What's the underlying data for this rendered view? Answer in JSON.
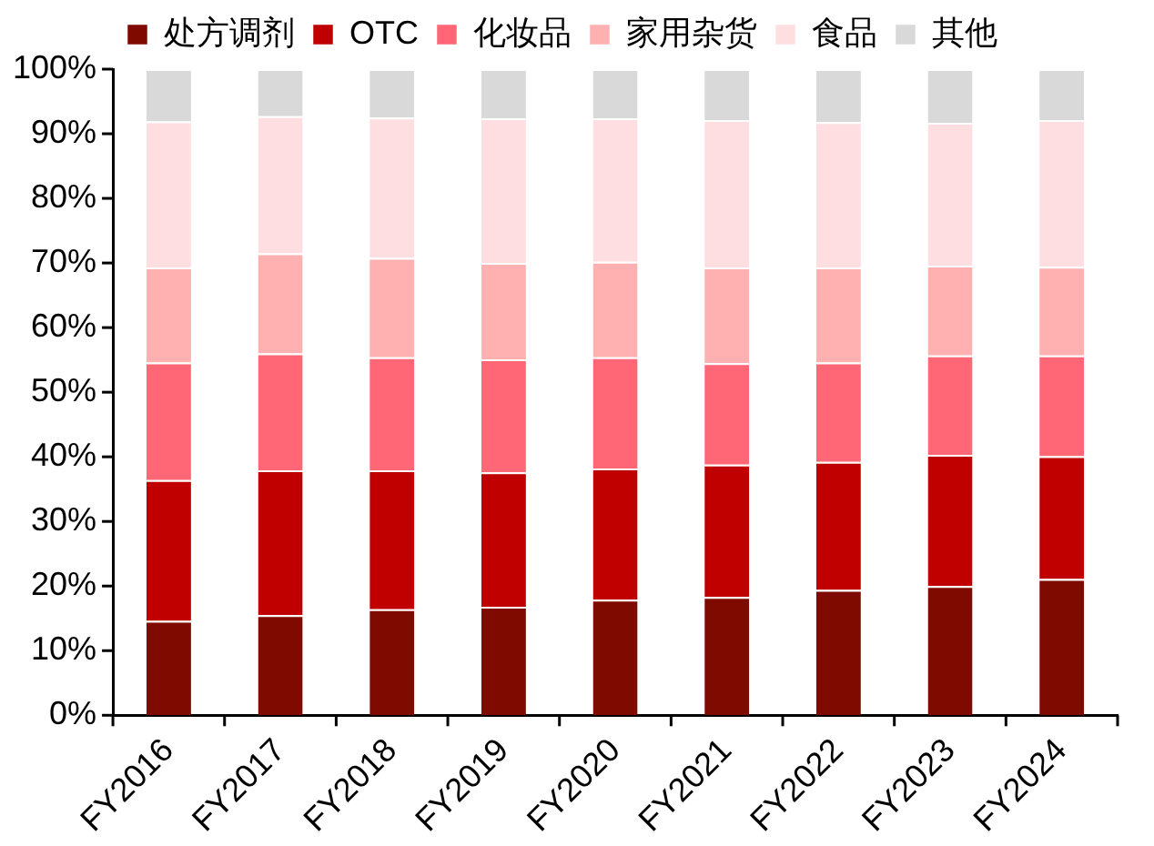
{
  "chart_data": {
    "type": "bar",
    "stacked": true,
    "legend": "top",
    "grid": false,
    "categories": [
      "FY2016",
      "FY2017",
      "FY2018",
      "FY2019",
      "FY2020",
      "FY2021",
      "FY2022",
      "FY2023",
      "FY2024"
    ],
    "ylim": [
      0,
      100
    ],
    "yticks": [
      {
        "value": 0,
        "label": "0%"
      },
      {
        "value": 10,
        "label": "10%"
      },
      {
        "value": 20,
        "label": "20%"
      },
      {
        "value": 30,
        "label": "30%"
      },
      {
        "value": 40,
        "label": "40%"
      },
      {
        "value": 50,
        "label": "50%"
      },
      {
        "value": 60,
        "label": "60%"
      },
      {
        "value": 70,
        "label": "70%"
      },
      {
        "value": 80,
        "label": "80%"
      },
      {
        "value": 90,
        "label": "90%"
      },
      {
        "value": 100,
        "label": "100%"
      }
    ],
    "series": [
      {
        "name": "处方调剂",
        "color": "#7f0a00",
        "values": [
          14.6,
          15.5,
          16.4,
          16.8,
          17.9,
          18.3,
          19.4,
          20.0,
          21.1
        ]
      },
      {
        "name": "OTC",
        "color": "#c00000",
        "values": [
          21.8,
          22.4,
          21.5,
          20.8,
          20.3,
          20.5,
          19.8,
          20.3,
          19.0
        ]
      },
      {
        "name": "化妆品",
        "color": "#ff6676",
        "values": [
          18.2,
          18.1,
          17.5,
          17.5,
          17.2,
          15.7,
          15.4,
          15.4,
          15.6
        ]
      },
      {
        "name": "家用杂货",
        "color": "#ffb0b0",
        "values": [
          14.7,
          15.5,
          15.4,
          14.9,
          14.8,
          14.8,
          14.7,
          13.9,
          13.7
        ]
      },
      {
        "name": "食品",
        "color": "#ffdee1",
        "values": [
          22.6,
          21.2,
          21.7,
          22.4,
          22.2,
          22.8,
          22.5,
          22.1,
          22.7
        ]
      },
      {
        "name": "其他",
        "color": "#d9d9d9",
        "values": [
          8.1,
          7.3,
          7.5,
          7.6,
          7.6,
          7.9,
          8.2,
          8.3,
          7.9
        ]
      }
    ]
  }
}
